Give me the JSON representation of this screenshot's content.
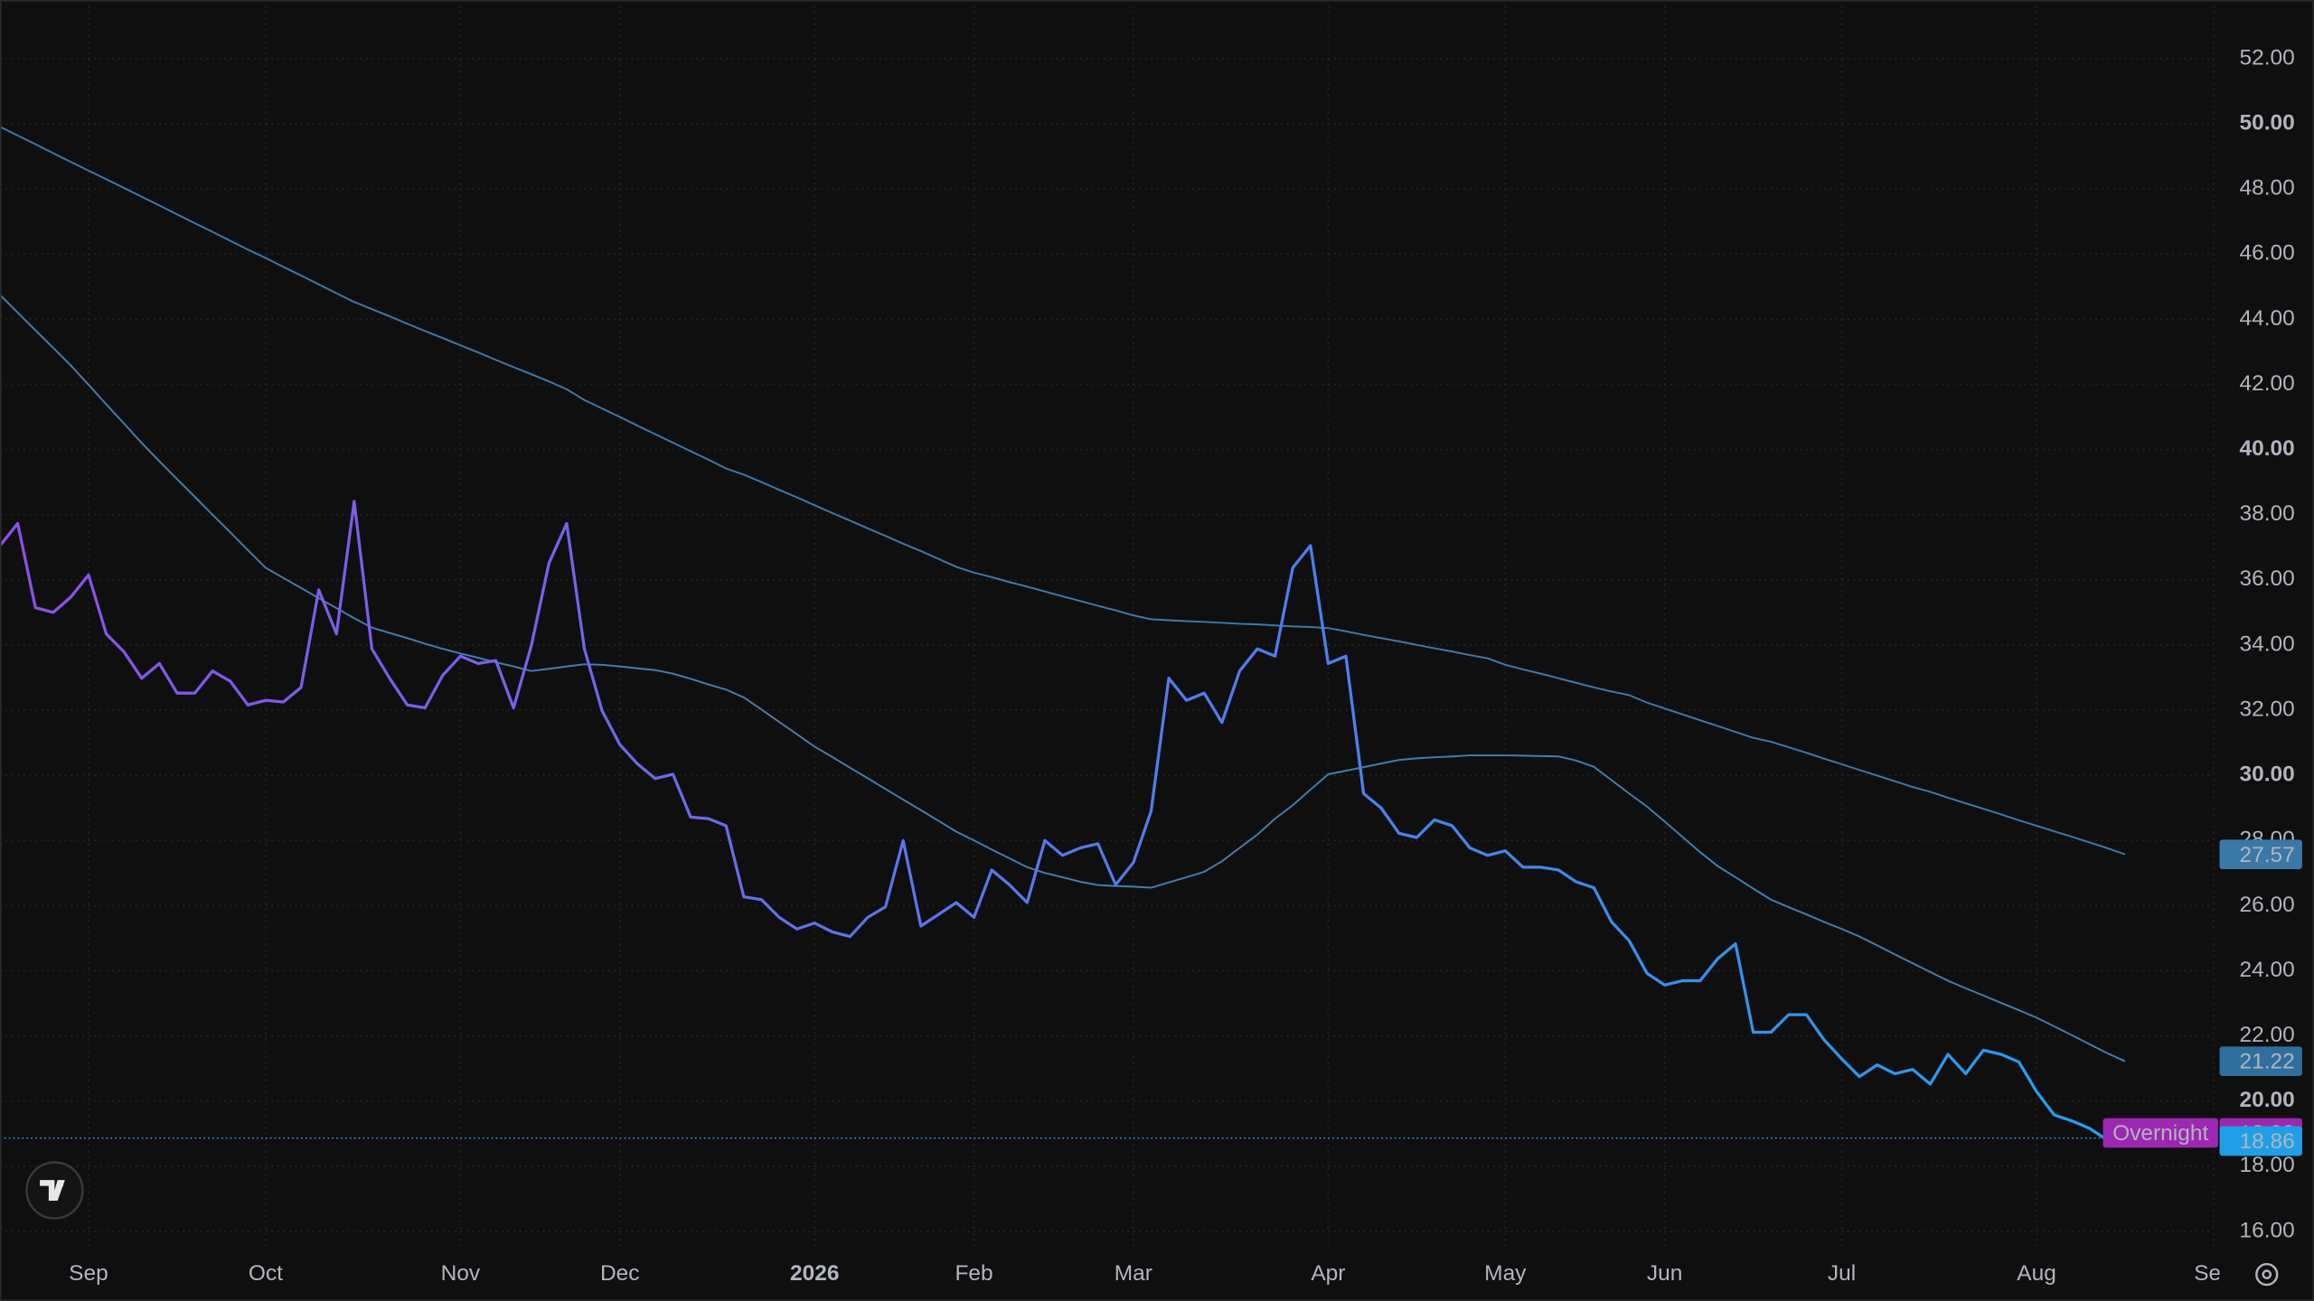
{
  "chart_data": {
    "type": "line",
    "categories": [
      null,
      null,
      null,
      null,
      null,
      "Sep",
      null,
      null,
      null,
      null,
      null,
      null,
      null,
      null,
      null,
      "Oct",
      null,
      null,
      null,
      null,
      null,
      null,
      null,
      null,
      null,
      null,
      "Nov",
      null,
      null,
      null,
      null,
      null,
      null,
      null,
      null,
      "Dec",
      null,
      null,
      null,
      null,
      null,
      null,
      null,
      null,
      null,
      null,
      "2026",
      null,
      null,
      null,
      null,
      null,
      null,
      null,
      null,
      "Feb",
      null,
      null,
      null,
      null,
      null,
      null,
      null,
      null,
      "Mar",
      null,
      null,
      null,
      null,
      null,
      null,
      null,
      null,
      null,
      null,
      "Apr",
      null,
      null,
      null,
      null,
      null,
      null,
      null,
      null,
      null,
      "May",
      null,
      null,
      null,
      null,
      null,
      null,
      null,
      null,
      "Jun",
      null,
      null,
      null,
      null,
      null,
      null,
      null,
      null,
      null,
      "Jul",
      null,
      null,
      null,
      null,
      null,
      null,
      null,
      null,
      null,
      null,
      "Aug",
      null,
      null,
      null,
      null,
      null,
      null,
      null,
      null,
      null,
      "Sep"
    ],
    "series": [
      {
        "gradient": [
          "#8e4fe8",
          "#1fa2f0"
        ],
        "width": 2,
        "values": [
          37.05,
          37.73,
          35.15,
          35.0,
          35.47,
          36.15,
          34.34,
          33.79,
          32.98,
          33.43,
          32.52,
          32.52,
          33.2,
          32.89,
          32.16,
          32.3,
          32.25,
          32.7,
          35.69,
          34.34,
          38.41,
          33.88,
          32.98,
          32.16,
          32.07,
          33.07,
          33.66,
          33.43,
          33.52,
          32.07,
          33.97,
          36.51,
          37.73,
          33.88,
          31.98,
          30.94,
          30.35,
          29.9,
          30.03,
          28.72,
          28.67,
          28.45,
          26.27,
          26.18,
          25.64,
          25.28,
          25.46,
          25.19,
          25.05,
          25.64,
          25.96,
          28.0,
          25.37,
          25.73,
          26.09,
          25.64,
          27.09,
          26.64,
          26.09,
          28.0,
          27.54,
          27.77,
          27.9,
          26.64,
          27.32,
          28.9,
          32.98,
          32.3,
          32.52,
          31.62,
          33.2,
          33.88,
          33.66,
          36.37,
          37.05,
          33.43,
          33.66,
          29.44,
          28.99,
          28.22,
          28.09,
          28.63,
          28.45,
          27.77,
          27.54,
          27.68,
          27.18,
          27.18,
          27.09,
          26.73,
          26.55,
          25.5,
          24.92,
          23.92,
          23.56,
          23.69,
          23.69,
          24.37,
          24.83,
          22.11,
          22.11,
          22.65,
          22.65,
          21.88,
          21.29,
          20.75,
          21.11,
          20.84,
          20.97,
          20.52,
          21.43,
          20.84,
          21.56,
          21.43,
          21.2,
          20.29,
          19.57,
          19.39,
          19.16,
          18.8,
          18.86,
          null,
          null,
          null,
          null,
          null
        ],
        "badge_color": "#1e9fe6"
      },
      {
        "color": "#3f7fb0",
        "width": 1.2,
        "values": [
          44.75,
          44.2,
          43.66,
          43.12,
          42.58,
          41.99,
          41.39,
          40.8,
          40.2,
          39.64,
          39.09,
          38.55,
          38.0,
          37.46,
          36.91,
          36.37,
          36.06,
          35.75,
          35.44,
          35.13,
          34.82,
          34.53,
          34.37,
          34.21,
          34.04,
          33.88,
          33.74,
          33.61,
          33.47,
          33.34,
          33.2,
          33.27,
          33.34,
          33.41,
          33.39,
          33.34,
          33.28,
          33.23,
          33.12,
          32.96,
          32.79,
          32.63,
          32.39,
          32.02,
          31.64,
          31.26,
          30.88,
          30.56,
          30.23,
          29.91,
          29.58,
          29.25,
          28.93,
          28.6,
          28.27,
          28.0,
          27.72,
          27.45,
          27.18,
          27.0,
          26.87,
          26.73,
          26.63,
          26.6,
          26.58,
          26.55,
          26.71,
          26.87,
          27.04,
          27.36,
          27.77,
          28.18,
          28.67,
          29.08,
          29.56,
          30.03,
          30.14,
          30.25,
          30.36,
          30.47,
          30.52,
          30.55,
          30.58,
          30.61,
          30.61,
          30.61,
          30.6,
          30.59,
          30.58,
          30.45,
          30.26,
          29.85,
          29.44,
          29.04,
          28.58,
          28.11,
          27.64,
          27.21,
          26.87,
          26.52,
          26.18,
          25.95,
          25.73,
          25.5,
          25.28,
          25.05,
          24.78,
          24.5,
          24.23,
          23.96,
          23.69,
          23.46,
          23.24,
          23.01,
          22.79,
          22.56,
          22.29,
          22.02,
          21.74,
          21.47,
          21.22,
          null,
          null,
          null,
          null,
          null
        ],
        "badge_color": "#2e6f9e"
      },
      {
        "color": "#3d7aab",
        "width": 1.2,
        "values": [
          49.91,
          49.64,
          49.37,
          49.1,
          48.83,
          48.56,
          48.3,
          48.03,
          47.76,
          47.49,
          47.22,
          46.95,
          46.68,
          46.41,
          46.14,
          45.88,
          45.61,
          45.34,
          45.07,
          44.8,
          44.53,
          44.31,
          44.09,
          43.86,
          43.64,
          43.42,
          43.2,
          42.98,
          42.75,
          42.53,
          42.31,
          42.09,
          41.85,
          41.52,
          41.26,
          41.0,
          40.73,
          40.47,
          40.21,
          39.95,
          39.69,
          39.42,
          39.23,
          39.0,
          38.76,
          38.53,
          38.29,
          38.05,
          37.82,
          37.58,
          37.35,
          37.11,
          36.88,
          36.64,
          36.4,
          36.22,
          36.08,
          35.93,
          35.79,
          35.64,
          35.49,
          35.35,
          35.2,
          35.06,
          34.91,
          34.79,
          34.76,
          34.73,
          34.71,
          34.68,
          34.65,
          34.63,
          34.6,
          34.57,
          34.55,
          34.52,
          34.42,
          34.31,
          34.21,
          34.11,
          34.0,
          33.9,
          33.8,
          33.69,
          33.59,
          33.39,
          33.25,
          33.12,
          32.98,
          32.84,
          32.7,
          32.57,
          32.46,
          32.23,
          32.05,
          31.87,
          31.69,
          31.51,
          31.33,
          31.15,
          31.03,
          30.86,
          30.69,
          30.51,
          30.34,
          30.16,
          29.99,
          29.82,
          29.64,
          29.49,
          29.31,
          29.14,
          28.97,
          28.8,
          28.62,
          28.45,
          28.28,
          28.11,
          27.94,
          27.76,
          27.57,
          null,
          null,
          null,
          null,
          null
        ],
        "badge_color": "#3a78a8"
      }
    ],
    "overnight": {
      "label": "Overnight",
      "value": 18.93,
      "color": "#9c27b0"
    },
    "ylim": [
      15.4,
      53.8
    ],
    "yticks": [
      {
        "value": 16,
        "label": "16.00"
      },
      {
        "value": 18,
        "label": "18.00"
      },
      {
        "value": 20,
        "label": "20.00"
      },
      {
        "value": 22,
        "label": "22.00"
      },
      {
        "value": 24,
        "label": "24.00"
      },
      {
        "value": 26,
        "label": "26.00"
      },
      {
        "value": 28,
        "label": "28.00"
      },
      {
        "value": 30,
        "label": "30.00"
      },
      {
        "value": 32,
        "label": "32.00"
      },
      {
        "value": 34,
        "label": "34.00"
      },
      {
        "value": 36,
        "label": "36.00"
      },
      {
        "value": 38,
        "label": "38.00"
      },
      {
        "value": 40,
        "label": "40.00"
      },
      {
        "value": 42,
        "label": "42.00"
      },
      {
        "value": 44,
        "label": "44.00"
      },
      {
        "value": 46,
        "label": "46.00"
      },
      {
        "value": 48,
        "label": "48.00"
      },
      {
        "value": 50,
        "label": "50.00"
      },
      {
        "value": 52,
        "label": "52.00"
      }
    ],
    "grid": true
  }
}
